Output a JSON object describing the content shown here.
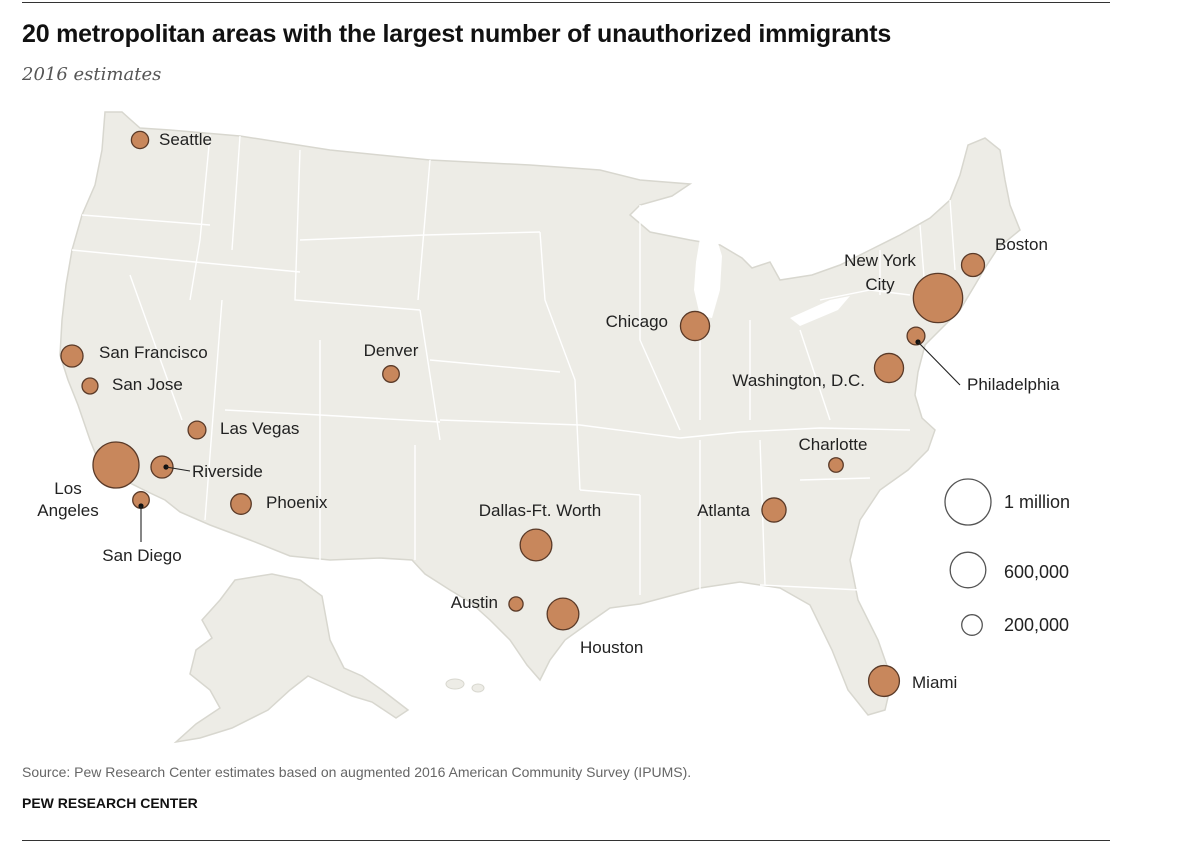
{
  "title": "20 metropolitan areas with the largest number of unauthorized immigrants",
  "subtitle": "2016 estimates",
  "source": "Source: Pew Research Center estimates based on augmented 2016 American Community Survey (IPUMS).",
  "credit": "PEW RESEARCH CENTER",
  "colors": {
    "bubble_fill": "#c8875c",
    "bubble_stroke": "#5a3a28",
    "land": "#edece6",
    "state_border": "#ffffff",
    "legend_stroke": "#555555"
  },
  "chart_data": {
    "type": "proportional-symbol-map",
    "legend": [
      {
        "label": "1 million",
        "value": 1000000
      },
      {
        "label": "600,000",
        "value": 600000
      },
      {
        "label": "200,000",
        "value": 200000
      }
    ],
    "metros": [
      {
        "name": "Seattle",
        "label_lines": [
          "Seattle"
        ],
        "value": 140000
      },
      {
        "name": "San Francisco",
        "label_lines": [
          "San Francisco"
        ],
        "value": 230000
      },
      {
        "name": "San Jose",
        "label_lines": [
          "San Jose"
        ],
        "value": 120000
      },
      {
        "name": "Las Vegas",
        "label_lines": [
          "Las Vegas"
        ],
        "value": 150000
      },
      {
        "name": "Los Angeles",
        "label_lines": [
          "Los",
          "Angeles"
        ],
        "value": 1000000
      },
      {
        "name": "Riverside",
        "label_lines": [
          "Riverside"
        ],
        "value": 230000
      },
      {
        "name": "San Diego",
        "label_lines": [
          "San Diego"
        ],
        "value": 130000
      },
      {
        "name": "Phoenix",
        "label_lines": [
          "Phoenix"
        ],
        "value": 200000
      },
      {
        "name": "Denver",
        "label_lines": [
          "Denver"
        ],
        "value": 130000
      },
      {
        "name": "Dallas-Ft. Worth",
        "label_lines": [
          "Dallas-Ft. Worth"
        ],
        "value": 475000
      },
      {
        "name": "Austin",
        "label_lines": [
          "Austin"
        ],
        "value": 95000
      },
      {
        "name": "Houston",
        "label_lines": [
          "Houston"
        ],
        "value": 475000
      },
      {
        "name": "Chicago",
        "label_lines": [
          "Chicago"
        ],
        "value": 400000
      },
      {
        "name": "Atlanta",
        "label_lines": [
          "Atlanta"
        ],
        "value": 275000
      },
      {
        "name": "Charlotte",
        "label_lines": [
          "Charlotte"
        ],
        "value": 100000
      },
      {
        "name": "Washington, D.C.",
        "label_lines": [
          "Washington, D.C."
        ],
        "value": 400000
      },
      {
        "name": "Philadelphia",
        "label_lines": [
          "Philadelphia"
        ],
        "value": 150000
      },
      {
        "name": "New York City",
        "label_lines": [
          "New York",
          "City"
        ],
        "value": 1150000
      },
      {
        "name": "Boston",
        "label_lines": [
          "Boston"
        ],
        "value": 250000
      },
      {
        "name": "Miami",
        "label_lines": [
          "Miami"
        ],
        "value": 450000
      }
    ]
  }
}
